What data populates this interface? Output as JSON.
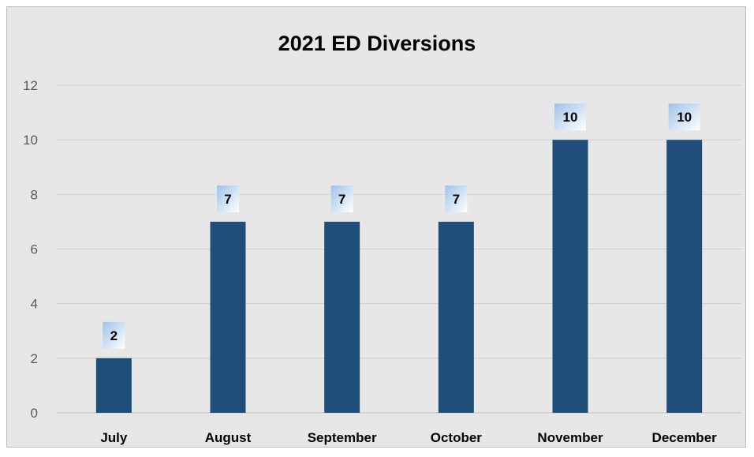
{
  "chart_data": {
    "type": "bar",
    "title": "2021 ED Diversions",
    "categories": [
      "July",
      "August",
      "September",
      "October",
      "November",
      "December"
    ],
    "values": [
      2,
      7,
      7,
      7,
      10,
      10
    ],
    "xlabel": "",
    "ylabel": "",
    "ylim": [
      0,
      12
    ],
    "yticks": [
      0,
      2,
      4,
      6,
      8,
      10,
      12
    ],
    "grid": true,
    "legend": "none",
    "colors": {
      "bar": "#1f4e79",
      "grid": "#d0d0d0",
      "label_box_top": "#9ec3ea",
      "label_box_bottom": "#ffffff"
    }
  }
}
